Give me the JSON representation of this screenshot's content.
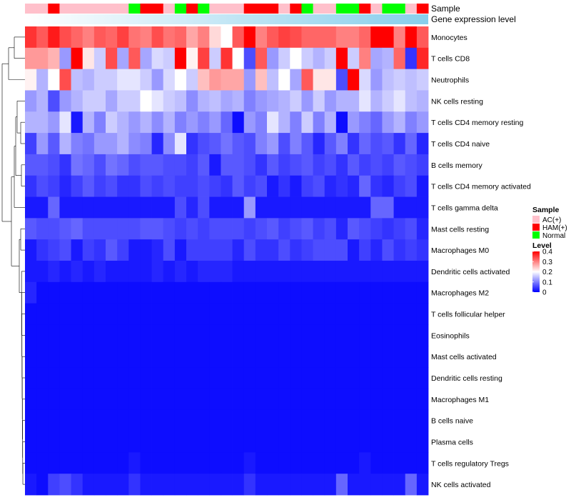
{
  "chart_data": {
    "type": "heatmap",
    "title": "",
    "annotation_tracks": [
      "Sample",
      "Gene expression level"
    ],
    "rows": [
      "Monocytes",
      "T cells CD8",
      "Neutrophils",
      "NK cells resting",
      "T cells CD4 memory resting",
      "T cells CD4 naive",
      "B cells memory",
      "T cells CD4 memory activated",
      "T cells gamma delta",
      "Mast cells resting",
      "Macrophages M0",
      "Dendritic cells activated",
      "Macrophages M2",
      "T cells follicular helper",
      "Eosinophils",
      "Mast cells activated",
      "Dendritic cells resting",
      "Macrophages M1",
      "B cells naive",
      "Plasma cells",
      "T cells regulatory  Tregs",
      "NK cells activated"
    ],
    "sample_groups": [
      "AC(+)",
      "AC(+)",
      "HAM(+)",
      "AC(+)",
      "AC(+)",
      "AC(+)",
      "AC(+)",
      "AC(+)",
      "AC(+)",
      "Normal",
      "HAM(+)",
      "HAM(+)",
      "AC(+)",
      "Normal",
      "HAM(+)",
      "Normal",
      "AC(+)",
      "AC(+)",
      "AC(+)",
      "HAM(+)",
      "HAM(+)",
      "HAM(+)",
      "AC(+)",
      "HAM(+)",
      "Normal",
      "AC(+)",
      "AC(+)",
      "Normal",
      "Normal",
      "HAM(+)",
      "AC(+)",
      "Normal",
      "Normal",
      "AC(+)",
      "HAM(+)"
    ],
    "gene_expression_gradient": [
      "#ffffff",
      "#87ceeb"
    ],
    "values": [
      [
        0.36,
        0.33,
        0.38,
        0.34,
        0.32,
        0.3,
        0.33,
        0.32,
        0.35,
        0.31,
        0.3,
        0.34,
        0.31,
        0.32,
        0.27,
        0.3,
        0.23,
        0.2,
        0.33,
        0.4,
        0.3,
        0.33,
        0.35,
        0.34,
        0.32,
        0.32,
        0.32,
        0.3,
        0.3,
        0.32,
        0.4,
        0.4,
        0.3,
        0.4,
        0.33
      ],
      [
        0.28,
        0.28,
        0.26,
        0.12,
        0.4,
        0.22,
        0.16,
        0.34,
        0.13,
        0.33,
        0.13,
        0.17,
        0.16,
        0.4,
        0.21,
        0.35,
        0.16,
        0.36,
        0.2,
        0.06,
        0.33,
        0.12,
        0.16,
        0.2,
        0.16,
        0.14,
        0.16,
        0.4,
        0.16,
        0.3,
        0.13,
        0.14,
        0.32,
        0.04,
        0.37
      ],
      [
        0.21,
        0.14,
        0.2,
        0.34,
        0.15,
        0.14,
        0.16,
        0.16,
        0.18,
        0.18,
        0.16,
        0.12,
        0.17,
        0.2,
        0.16,
        0.25,
        0.28,
        0.27,
        0.27,
        0.12,
        0.25,
        0.15,
        0.2,
        0.13,
        0.33,
        0.22,
        0.22,
        0.06,
        0.4,
        0.17,
        0.12,
        0.15,
        0.16,
        0.15,
        0.16
      ],
      [
        0.12,
        0.14,
        0.06,
        0.12,
        0.14,
        0.16,
        0.16,
        0.13,
        0.16,
        0.16,
        0.2,
        0.18,
        0.16,
        0.15,
        0.11,
        0.14,
        0.15,
        0.13,
        0.14,
        0.1,
        0.12,
        0.13,
        0.14,
        0.16,
        0.12,
        0.16,
        0.12,
        0.14,
        0.14,
        0.18,
        0.14,
        0.16,
        0.18,
        0.15,
        0.14
      ],
      [
        0.14,
        0.14,
        0.12,
        0.18,
        0.02,
        0.14,
        0.1,
        0.16,
        0.14,
        0.12,
        0.14,
        0.11,
        0.14,
        0.1,
        0.12,
        0.1,
        0.12,
        0.08,
        0.01,
        0.12,
        0.1,
        0.18,
        0.14,
        0.1,
        0.16,
        0.1,
        0.14,
        0.01,
        0.12,
        0.1,
        0.08,
        0.12,
        0.14,
        0.1,
        0.12
      ],
      [
        0.05,
        0.12,
        0.07,
        0.14,
        0.1,
        0.09,
        0.12,
        0.12,
        0.14,
        0.11,
        0.1,
        0.03,
        0.11,
        0.18,
        0.04,
        0.06,
        0.07,
        0.09,
        0.07,
        0.06,
        0.1,
        0.12,
        0.06,
        0.1,
        0.07,
        0.03,
        0.07,
        0.1,
        0.04,
        0.08,
        0.06,
        0.07,
        0.04,
        0.08,
        0.03
      ],
      [
        0.07,
        0.07,
        0.06,
        0.04,
        0.09,
        0.08,
        0.06,
        0.09,
        0.08,
        0.06,
        0.07,
        0.07,
        0.06,
        0.06,
        0.05,
        0.07,
        0.02,
        0.07,
        0.07,
        0.06,
        0.04,
        0.07,
        0.05,
        0.06,
        0.07,
        0.05,
        0.06,
        0.04,
        0.07,
        0.05,
        0.06,
        0.05,
        0.07,
        0.06,
        0.05
      ],
      [
        0.04,
        0.06,
        0.05,
        0.03,
        0.05,
        0.07,
        0.05,
        0.06,
        0.04,
        0.04,
        0.06,
        0.05,
        0.06,
        0.05,
        0.05,
        0.06,
        0.05,
        0.04,
        0.07,
        0.05,
        0.06,
        0.02,
        0.04,
        0.02,
        0.05,
        0.06,
        0.03,
        0.04,
        0.03,
        0.08,
        0.04,
        0.03,
        0.05,
        0.06,
        0.02
      ],
      [
        0.02,
        0.02,
        0.08,
        0.02,
        0.02,
        0.02,
        0.02,
        0.02,
        0.02,
        0.02,
        0.02,
        0.02,
        0.02,
        0.06,
        0.03,
        0.06,
        0.02,
        0.02,
        0.02,
        0.12,
        0.02,
        0.02,
        0.02,
        0.02,
        0.02,
        0.02,
        0.02,
        0.02,
        0.02,
        0.02,
        0.08,
        0.08,
        0.02,
        0.02,
        0.02
      ],
      [
        0.07,
        0.06,
        0.06,
        0.07,
        0.08,
        0.06,
        0.06,
        0.06,
        0.06,
        0.06,
        0.07,
        0.07,
        0.06,
        0.05,
        0.06,
        0.05,
        0.06,
        0.06,
        0.06,
        0.05,
        0.06,
        0.07,
        0.05,
        0.06,
        0.07,
        0.05,
        0.06,
        0.03,
        0.07,
        0.06,
        0.05,
        0.04,
        0.05,
        0.06,
        0.03
      ],
      [
        0.02,
        0.04,
        0.05,
        0.06,
        0.02,
        0.05,
        0.04,
        0.07,
        0.05,
        0.02,
        0.02,
        0.03,
        0.06,
        0.02,
        0.05,
        0.05,
        0.05,
        0.05,
        0.03,
        0.06,
        0.04,
        0.04,
        0.06,
        0.04,
        0.05,
        0.06,
        0.06,
        0.06,
        0.02,
        0.05,
        0.03,
        0.06,
        0.04,
        0.05,
        0.04
      ],
      [
        0.02,
        0.02,
        0.03,
        0.02,
        0.03,
        0.02,
        0.03,
        0.02,
        0.02,
        0.02,
        0.02,
        0.03,
        0.02,
        0.03,
        0.02,
        0.03,
        0.03,
        0.03,
        0.02,
        0.02,
        0.02,
        0.02,
        0.02,
        0.02,
        0.02,
        0.02,
        0.02,
        0.02,
        0.02,
        0.02,
        0.02,
        0.02,
        0.02,
        0.02,
        0.02
      ],
      [
        0.03,
        0.01,
        0.01,
        0.01,
        0.01,
        0.01,
        0.01,
        0.01,
        0.01,
        0.01,
        0.01,
        0.01,
        0.01,
        0.01,
        0.01,
        0.01,
        0.01,
        0.01,
        0.01,
        0.01,
        0.01,
        0.01,
        0.01,
        0.01,
        0.01,
        0.01,
        0.01,
        0.01,
        0.01,
        0.01,
        0.01,
        0.01,
        0.01,
        0.01,
        0.01
      ],
      [
        0.01,
        0.01,
        0.01,
        0.01,
        0.01,
        0.01,
        0.01,
        0.01,
        0.01,
        0.01,
        0.01,
        0.01,
        0.01,
        0.01,
        0.01,
        0.01,
        0.01,
        0.01,
        0.01,
        0.01,
        0.01,
        0.01,
        0.01,
        0.01,
        0.01,
        0.01,
        0.01,
        0.01,
        0.01,
        0.01,
        0.01,
        0.01,
        0.01,
        0.01,
        0.01
      ],
      [
        0.01,
        0.01,
        0.01,
        0.01,
        0.01,
        0.01,
        0.01,
        0.01,
        0.01,
        0.01,
        0.01,
        0.01,
        0.01,
        0.01,
        0.01,
        0.01,
        0.01,
        0.01,
        0.01,
        0.01,
        0.01,
        0.01,
        0.01,
        0.01,
        0.01,
        0.01,
        0.01,
        0.01,
        0.01,
        0.01,
        0.01,
        0.01,
        0.01,
        0.01,
        0.01
      ],
      [
        0.01,
        0.01,
        0.01,
        0.01,
        0.01,
        0.01,
        0.01,
        0.01,
        0.01,
        0.01,
        0.01,
        0.01,
        0.01,
        0.01,
        0.01,
        0.01,
        0.01,
        0.01,
        0.01,
        0.01,
        0.01,
        0.01,
        0.01,
        0.01,
        0.01,
        0.01,
        0.01,
        0.01,
        0.01,
        0.01,
        0.01,
        0.01,
        0.01,
        0.01,
        0.01
      ],
      [
        0.01,
        0.01,
        0.01,
        0.01,
        0.01,
        0.01,
        0.01,
        0.01,
        0.01,
        0.01,
        0.01,
        0.01,
        0.01,
        0.01,
        0.01,
        0.01,
        0.01,
        0.01,
        0.01,
        0.01,
        0.01,
        0.01,
        0.01,
        0.01,
        0.01,
        0.01,
        0.01,
        0.01,
        0.01,
        0.01,
        0.01,
        0.01,
        0.01,
        0.01,
        0.01
      ],
      [
        0.01,
        0.01,
        0.01,
        0.01,
        0.01,
        0.01,
        0.01,
        0.01,
        0.01,
        0.01,
        0.01,
        0.01,
        0.01,
        0.01,
        0.01,
        0.01,
        0.01,
        0.01,
        0.01,
        0.01,
        0.01,
        0.01,
        0.01,
        0.01,
        0.01,
        0.01,
        0.01,
        0.01,
        0.01,
        0.01,
        0.01,
        0.01,
        0.01,
        0.01,
        0.01
      ],
      [
        0.01,
        0.01,
        0.01,
        0.01,
        0.01,
        0.01,
        0.01,
        0.01,
        0.01,
        0.01,
        0.01,
        0.01,
        0.01,
        0.01,
        0.01,
        0.01,
        0.01,
        0.01,
        0.01,
        0.01,
        0.01,
        0.01,
        0.01,
        0.01,
        0.01,
        0.01,
        0.01,
        0.01,
        0.01,
        0.01,
        0.01,
        0.01,
        0.01,
        0.01,
        0.01
      ],
      [
        0.01,
        0.01,
        0.01,
        0.01,
        0.01,
        0.01,
        0.01,
        0.01,
        0.01,
        0.01,
        0.01,
        0.01,
        0.01,
        0.01,
        0.01,
        0.01,
        0.01,
        0.01,
        0.01,
        0.01,
        0.01,
        0.01,
        0.01,
        0.01,
        0.01,
        0.01,
        0.01,
        0.01,
        0.01,
        0.01,
        0.01,
        0.01,
        0.01,
        0.01,
        0.01
      ],
      [
        0.01,
        0.01,
        0.01,
        0.01,
        0.01,
        0.01,
        0.01,
        0.01,
        0.01,
        0.02,
        0.01,
        0.01,
        0.01,
        0.01,
        0.01,
        0.01,
        0.01,
        0.01,
        0.01,
        0.02,
        0.01,
        0.01,
        0.01,
        0.01,
        0.01,
        0.01,
        0.01,
        0.01,
        0.01,
        0.02,
        0.01,
        0.01,
        0.01,
        0.01,
        0.01
      ],
      [
        0.02,
        0.01,
        0.05,
        0.06,
        0.04,
        0.02,
        0.02,
        0.02,
        0.02,
        0.04,
        0.02,
        0.02,
        0.02,
        0.02,
        0.02,
        0.02,
        0.02,
        0.02,
        0.02,
        0.04,
        0.02,
        0.02,
        0.02,
        0.02,
        0.02,
        0.02,
        0.02,
        0.08,
        0.02,
        0.02,
        0.02,
        0.02,
        0.02,
        0.08,
        0.02
      ]
    ],
    "legend": {
      "sample_title": "Sample",
      "sample_entries": [
        {
          "label": "AC(+)",
          "color": "#ffc0cb"
        },
        {
          "label": "HAM(+)",
          "color": "#ff0000"
        },
        {
          "label": "Normal",
          "color": "#00ff00"
        }
      ],
      "level_title": "Level",
      "level_ticks": [
        "0.4",
        "0.3",
        "0.2",
        "0.1",
        "0"
      ],
      "level_range": [
        0,
        0.4
      ],
      "level_colors": [
        "#0000ff",
        "#ffffff",
        "#ff0000"
      ]
    },
    "dendrogram": "rows clustered (hierarchical), shown on left"
  }
}
